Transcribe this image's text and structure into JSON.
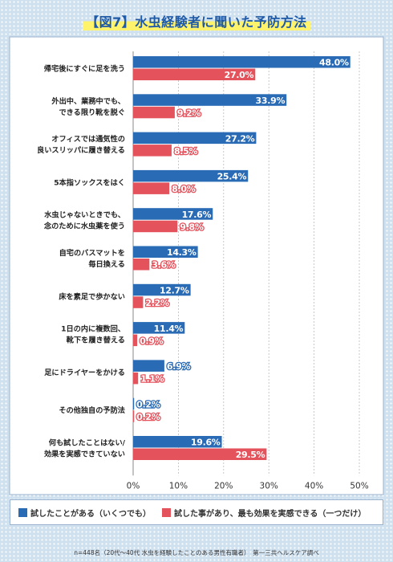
{
  "title": "【図7】水虫経験者に聞いた予防方法",
  "chart_data": {
    "type": "bar",
    "orientation": "horizontal",
    "categories": [
      [
        "帰宅後にすぐに足を洗う"
      ],
      [
        "外出中、業務中でも、",
        "できる限り靴を脱ぐ"
      ],
      [
        "オフィスでは通気性の",
        "良いスリッパに履き替える"
      ],
      [
        "5本指ソックスをはく"
      ],
      [
        "水虫じゃないときでも、",
        "念のために水虫薬を使う"
      ],
      [
        "自宅のバスマットを",
        "毎日換える"
      ],
      [
        "床を素足で歩かない"
      ],
      [
        "1日の内に複数回、",
        "靴下を履き替える"
      ],
      [
        "足にドライヤーをかける"
      ],
      [
        "その他独自の予防法"
      ],
      [
        "何も試したことはない/",
        "効果を実感できていない"
      ]
    ],
    "series": [
      {
        "name": "試したことがある（いくつでも）",
        "color": "#2a6bb5",
        "values": [
          48.0,
          33.9,
          27.2,
          25.4,
          17.6,
          14.3,
          12.7,
          11.4,
          6.9,
          0.2,
          19.6
        ],
        "labels": [
          "48.0%",
          "33.9%",
          "27.2%",
          "25.4%",
          "17.6%",
          "14.3%",
          "12.7%",
          "11.4%",
          "6.9%",
          "0.2%",
          "19.6%"
        ]
      },
      {
        "name": "試した事があり、最も効果を実感できる（一つだけ）",
        "color": "#e4525c",
        "values": [
          27.0,
          9.2,
          8.5,
          8.0,
          9.8,
          3.6,
          2.2,
          0.9,
          1.1,
          0.2,
          29.5
        ],
        "labels": [
          "27.0%",
          "9.2%",
          "8.5%",
          "8.0%",
          "9.8%",
          "3.6%",
          "2.2%",
          "0.9%",
          "1.1%",
          "0.2%",
          "29.5%"
        ]
      }
    ],
    "xlim": [
      0,
      50
    ],
    "xticks": [
      "0%",
      "10%",
      "20%",
      "30%",
      "40%",
      "50%"
    ],
    "legend_position": "bottom"
  },
  "footnote": "n=448名（20代〜40代 水虫を経験したことのある男性有職者）　第一三共ヘルスケア調べ"
}
